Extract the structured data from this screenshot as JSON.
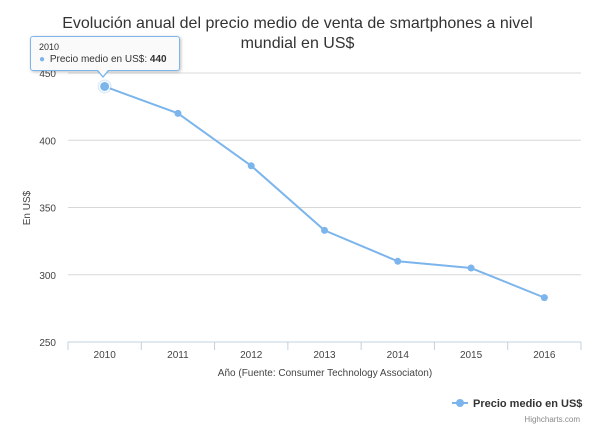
{
  "chart_data": {
    "type": "line",
    "title": "Evolución anual del precio medio de venta de smartphones a nivel mundial en US$",
    "xlabel": "Año (Fuente: Consumer Technology Associaton)",
    "ylabel": "En US$",
    "categories": [
      "2010",
      "2011",
      "2012",
      "2013",
      "2014",
      "2015",
      "2016"
    ],
    "series": [
      {
        "name": "Precio medio en US$",
        "values": [
          440,
          420,
          381,
          333,
          310,
          305,
          283
        ],
        "color": "#7cb5ec"
      }
    ],
    "ylim": [
      250,
      450
    ],
    "yticks": [
      250,
      300,
      350,
      400,
      450
    ],
    "grid": true,
    "legend_position": "bottom-right",
    "tooltip": {
      "category": "2010",
      "series": "Precio medio en US$",
      "value": "440"
    },
    "credits": "Highcharts.com"
  }
}
